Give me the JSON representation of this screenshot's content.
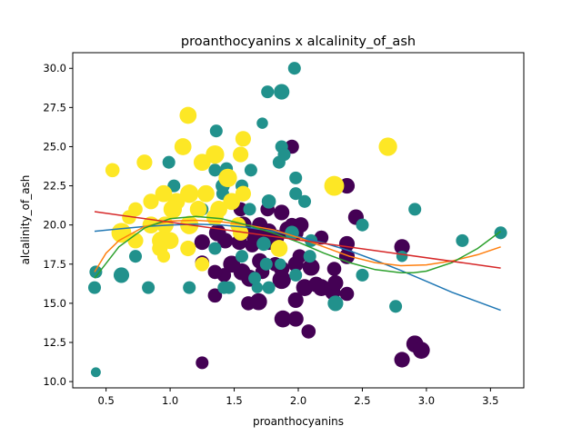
{
  "chart_data": {
    "type": "scatter",
    "title": "proanthocyanins x alcalinity_of_ash",
    "xlabel": "proanthocyanins",
    "ylabel": "alcalinity_of_ash",
    "xlim": [
      0.24,
      3.76
    ],
    "ylim": [
      9.6,
      31.0
    ],
    "xticks": [
      0.5,
      1.0,
      1.5,
      2.0,
      2.5,
      3.0,
      3.5
    ],
    "xtick_labels": [
      "0.5",
      "1.0",
      "1.5",
      "2.0",
      "2.5",
      "3.0",
      "3.5"
    ],
    "yticks": [
      10.0,
      12.5,
      15.0,
      17.5,
      20.0,
      22.5,
      25.0,
      27.5,
      30.0
    ],
    "ytick_labels": [
      "10.0",
      "12.5",
      "15.0",
      "17.5",
      "20.0",
      "22.5",
      "25.0",
      "27.5",
      "30.0"
    ],
    "grid": false,
    "legend": "none",
    "size_range": [
      7,
      14
    ],
    "series": [
      {
        "color": "#440154",
        "points": [
          [
            1.25,
            11.2,
            9
          ],
          [
            2.81,
            11.4,
            11
          ],
          [
            2.91,
            12.4,
            12
          ],
          [
            2.96,
            12.0,
            12
          ],
          [
            2.08,
            13.2,
            10
          ],
          [
            1.61,
            15.0,
            10
          ],
          [
            1.69,
            15.1,
            12
          ],
          [
            1.35,
            15.5,
            10
          ],
          [
            1.88,
            14.0,
            12
          ],
          [
            1.98,
            14.0,
            11
          ],
          [
            1.98,
            15.2,
            11
          ],
          [
            2.27,
            15.7,
            11
          ],
          [
            2.38,
            15.6,
            10
          ],
          [
            2.18,
            16.0,
            12
          ],
          [
            2.05,
            16.0,
            12
          ],
          [
            2.14,
            16.2,
            11
          ],
          [
            2.29,
            16.3,
            11
          ],
          [
            1.87,
            16.5,
            13
          ],
          [
            1.62,
            16.6,
            12
          ],
          [
            1.42,
            16.8,
            10
          ],
          [
            1.56,
            17.0,
            12
          ],
          [
            1.72,
            17.0,
            10
          ],
          [
            1.87,
            17.2,
            11
          ],
          [
            1.98,
            17.5,
            11
          ],
          [
            2.1,
            17.3,
            12
          ],
          [
            2.28,
            17.2,
            10
          ],
          [
            1.35,
            17.0,
            10
          ],
          [
            1.48,
            17.5,
            12
          ],
          [
            1.25,
            17.6,
            10
          ],
          [
            1.7,
            17.7,
            11
          ],
          [
            2.01,
            18.0,
            10
          ],
          [
            2.38,
            18.0,
            11
          ],
          [
            2.38,
            18.8,
            11
          ],
          [
            1.77,
            18.9,
            11
          ],
          [
            1.64,
            18.7,
            10
          ],
          [
            1.54,
            18.9,
            11
          ],
          [
            1.43,
            19.0,
            11
          ],
          [
            1.25,
            18.9,
            11
          ],
          [
            1.83,
            19.2,
            11
          ],
          [
            2.18,
            19.2,
            10
          ],
          [
            1.66,
            19.3,
            12
          ],
          [
            1.98,
            19.5,
            11
          ],
          [
            1.37,
            19.5,
            12
          ],
          [
            1.77,
            19.6,
            11
          ],
          [
            1.92,
            19.7,
            12
          ],
          [
            1.57,
            20.0,
            12
          ],
          [
            1.95,
            20.0,
            10
          ],
          [
            1.7,
            20.0,
            11
          ],
          [
            2.02,
            20.0,
            11
          ],
          [
            2.45,
            20.5,
            11
          ],
          [
            1.87,
            20.8,
            11
          ],
          [
            1.55,
            21.0,
            10
          ],
          [
            1.76,
            21.0,
            10
          ],
          [
            2.38,
            22.5,
            11
          ],
          [
            1.95,
            25.0,
            10
          ],
          [
            2.81,
            18.6,
            11
          ],
          [
            1.82,
            17.5,
            10
          ]
        ]
      },
      {
        "color": "#21918c",
        "points": [
          [
            0.42,
            10.6,
            7
          ],
          [
            0.41,
            16.0,
            9
          ],
          [
            0.42,
            17.0,
            9
          ],
          [
            0.62,
            16.8,
            11
          ],
          [
            0.73,
            18.0,
            9
          ],
          [
            0.83,
            16.0,
            9
          ],
          [
            1.15,
            16.0,
            9
          ],
          [
            1.42,
            16.0,
            9
          ],
          [
            1.46,
            16.0,
            9
          ],
          [
            1.68,
            16.0,
            8
          ],
          [
            1.77,
            16.0,
            9
          ],
          [
            1.66,
            16.6,
            9
          ],
          [
            1.75,
            17.5,
            9
          ],
          [
            1.86,
            17.5,
            8
          ],
          [
            2.09,
            18.0,
            9
          ],
          [
            2.29,
            15.0,
            11
          ],
          [
            2.5,
            16.8,
            9
          ],
          [
            2.76,
            14.8,
            9
          ],
          [
            2.81,
            18.0,
            8
          ],
          [
            3.28,
            19.0,
            9
          ],
          [
            3.58,
            19.5,
            9
          ],
          [
            2.91,
            21.0,
            9
          ],
          [
            2.5,
            20.0,
            9
          ],
          [
            2.05,
            21.5,
            9
          ],
          [
            1.77,
            21.5,
            10
          ],
          [
            1.62,
            21.0,
            9
          ],
          [
            1.35,
            20.5,
            9
          ],
          [
            1.25,
            21.0,
            9
          ],
          [
            1.41,
            22.0,
            9
          ],
          [
            1.56,
            22.5,
            9
          ],
          [
            1.41,
            22.5,
            10
          ],
          [
            1.35,
            23.5,
            9
          ],
          [
            1.44,
            23.6,
            9
          ],
          [
            1.63,
            23.5,
            9
          ],
          [
            1.85,
            24.0,
            9
          ],
          [
            0.99,
            24.0,
            9
          ],
          [
            1.03,
            22.5,
            9
          ],
          [
            1.36,
            26.0,
            9
          ],
          [
            1.72,
            26.5,
            8
          ],
          [
            1.76,
            28.5,
            9
          ],
          [
            1.87,
            28.5,
            11
          ],
          [
            1.97,
            30.0,
            9
          ],
          [
            1.87,
            25.0,
            9
          ],
          [
            1.89,
            24.5,
            9
          ],
          [
            1.98,
            23.0,
            9
          ],
          [
            1.98,
            22.0,
            9
          ],
          [
            1.95,
            19.5,
            10
          ],
          [
            2.1,
            19.0,
            9
          ],
          [
            1.56,
            18.0,
            9
          ],
          [
            1.35,
            18.5,
            9
          ],
          [
            1.73,
            18.8,
            10
          ],
          [
            1.98,
            16.8,
            9
          ]
        ]
      },
      {
        "color": "#fde725",
        "points": [
          [
            0.55,
            23.5,
            10
          ],
          [
            0.8,
            24.0,
            11
          ],
          [
            1.1,
            25.0,
            12
          ],
          [
            1.14,
            27.0,
            12
          ],
          [
            1.35,
            24.5,
            13
          ],
          [
            1.55,
            24.5,
            11
          ],
          [
            1.57,
            25.5,
            11
          ],
          [
            1.25,
            24.0,
            12
          ],
          [
            1.45,
            23.0,
            13
          ],
          [
            2.7,
            25.0,
            13
          ],
          [
            2.28,
            22.5,
            14
          ],
          [
            1.57,
            22.0,
            11
          ],
          [
            1.48,
            21.5,
            12
          ],
          [
            1.28,
            22.0,
            12
          ],
          [
            1.15,
            22.0,
            13
          ],
          [
            1.05,
            21.5,
            12
          ],
          [
            0.95,
            22.0,
            12
          ],
          [
            0.85,
            21.5,
            11
          ],
          [
            0.73,
            21.0,
            10
          ],
          [
            1.02,
            21.0,
            13
          ],
          [
            1.22,
            21.0,
            12
          ],
          [
            1.35,
            20.5,
            12
          ],
          [
            1.15,
            20.0,
            13
          ],
          [
            0.96,
            20.0,
            12
          ],
          [
            0.85,
            20.0,
            12
          ],
          [
            0.62,
            19.5,
            14
          ],
          [
            0.73,
            19.0,
            11
          ],
          [
            0.93,
            19.0,
            13
          ],
          [
            1.0,
            19.0,
            12
          ],
          [
            0.92,
            18.5,
            11
          ],
          [
            0.95,
            18.0,
            9
          ],
          [
            1.14,
            18.5,
            11
          ],
          [
            1.25,
            17.5,
            10
          ],
          [
            1.55,
            19.5,
            11
          ],
          [
            1.85,
            18.5,
            12
          ],
          [
            1.53,
            20.0,
            11
          ],
          [
            1.38,
            21.0,
            12
          ],
          [
            0.68,
            20.5,
            10
          ]
        ]
      }
    ],
    "trend_lines": [
      {
        "color": "#1f77b4",
        "x": [
          0.41,
          0.6,
          0.8,
          1.0,
          1.2,
          1.4,
          1.6,
          1.8,
          2.0,
          2.2,
          2.4,
          2.6,
          2.8,
          3.0,
          3.2,
          3.4,
          3.58
        ],
        "y": [
          19.6,
          19.75,
          19.9,
          20.0,
          20.05,
          20.0,
          19.85,
          19.6,
          19.25,
          18.85,
          18.35,
          17.75,
          17.1,
          16.4,
          15.7,
          15.1,
          14.55
        ]
      },
      {
        "color": "#ff7f0e",
        "x": [
          0.41,
          0.5,
          0.6,
          0.8,
          1.0,
          1.2,
          1.4,
          1.6,
          1.8,
          2.0,
          2.2,
          2.4,
          2.6,
          2.8,
          3.0,
          3.2,
          3.4,
          3.58
        ],
        "y": [
          17.0,
          18.2,
          19.0,
          19.9,
          20.25,
          20.3,
          20.2,
          20.0,
          19.7,
          19.2,
          18.6,
          18.0,
          17.6,
          17.4,
          17.45,
          17.7,
          18.1,
          18.6
        ]
      },
      {
        "color": "#2ca02c",
        "x": [
          0.41,
          0.6,
          0.8,
          1.0,
          1.2,
          1.4,
          1.6,
          1.8,
          2.0,
          2.2,
          2.4,
          2.6,
          2.8,
          2.9,
          3.0,
          3.2,
          3.4,
          3.58
        ],
        "y": [
          16.6,
          18.6,
          19.8,
          20.4,
          20.55,
          20.4,
          20.0,
          19.5,
          18.9,
          18.2,
          17.6,
          17.15,
          16.95,
          16.95,
          17.05,
          17.6,
          18.5,
          19.6
        ]
      },
      {
        "color": "#d62728",
        "x": [
          0.41,
          3.58
        ],
        "y": [
          20.85,
          17.25
        ]
      }
    ]
  }
}
